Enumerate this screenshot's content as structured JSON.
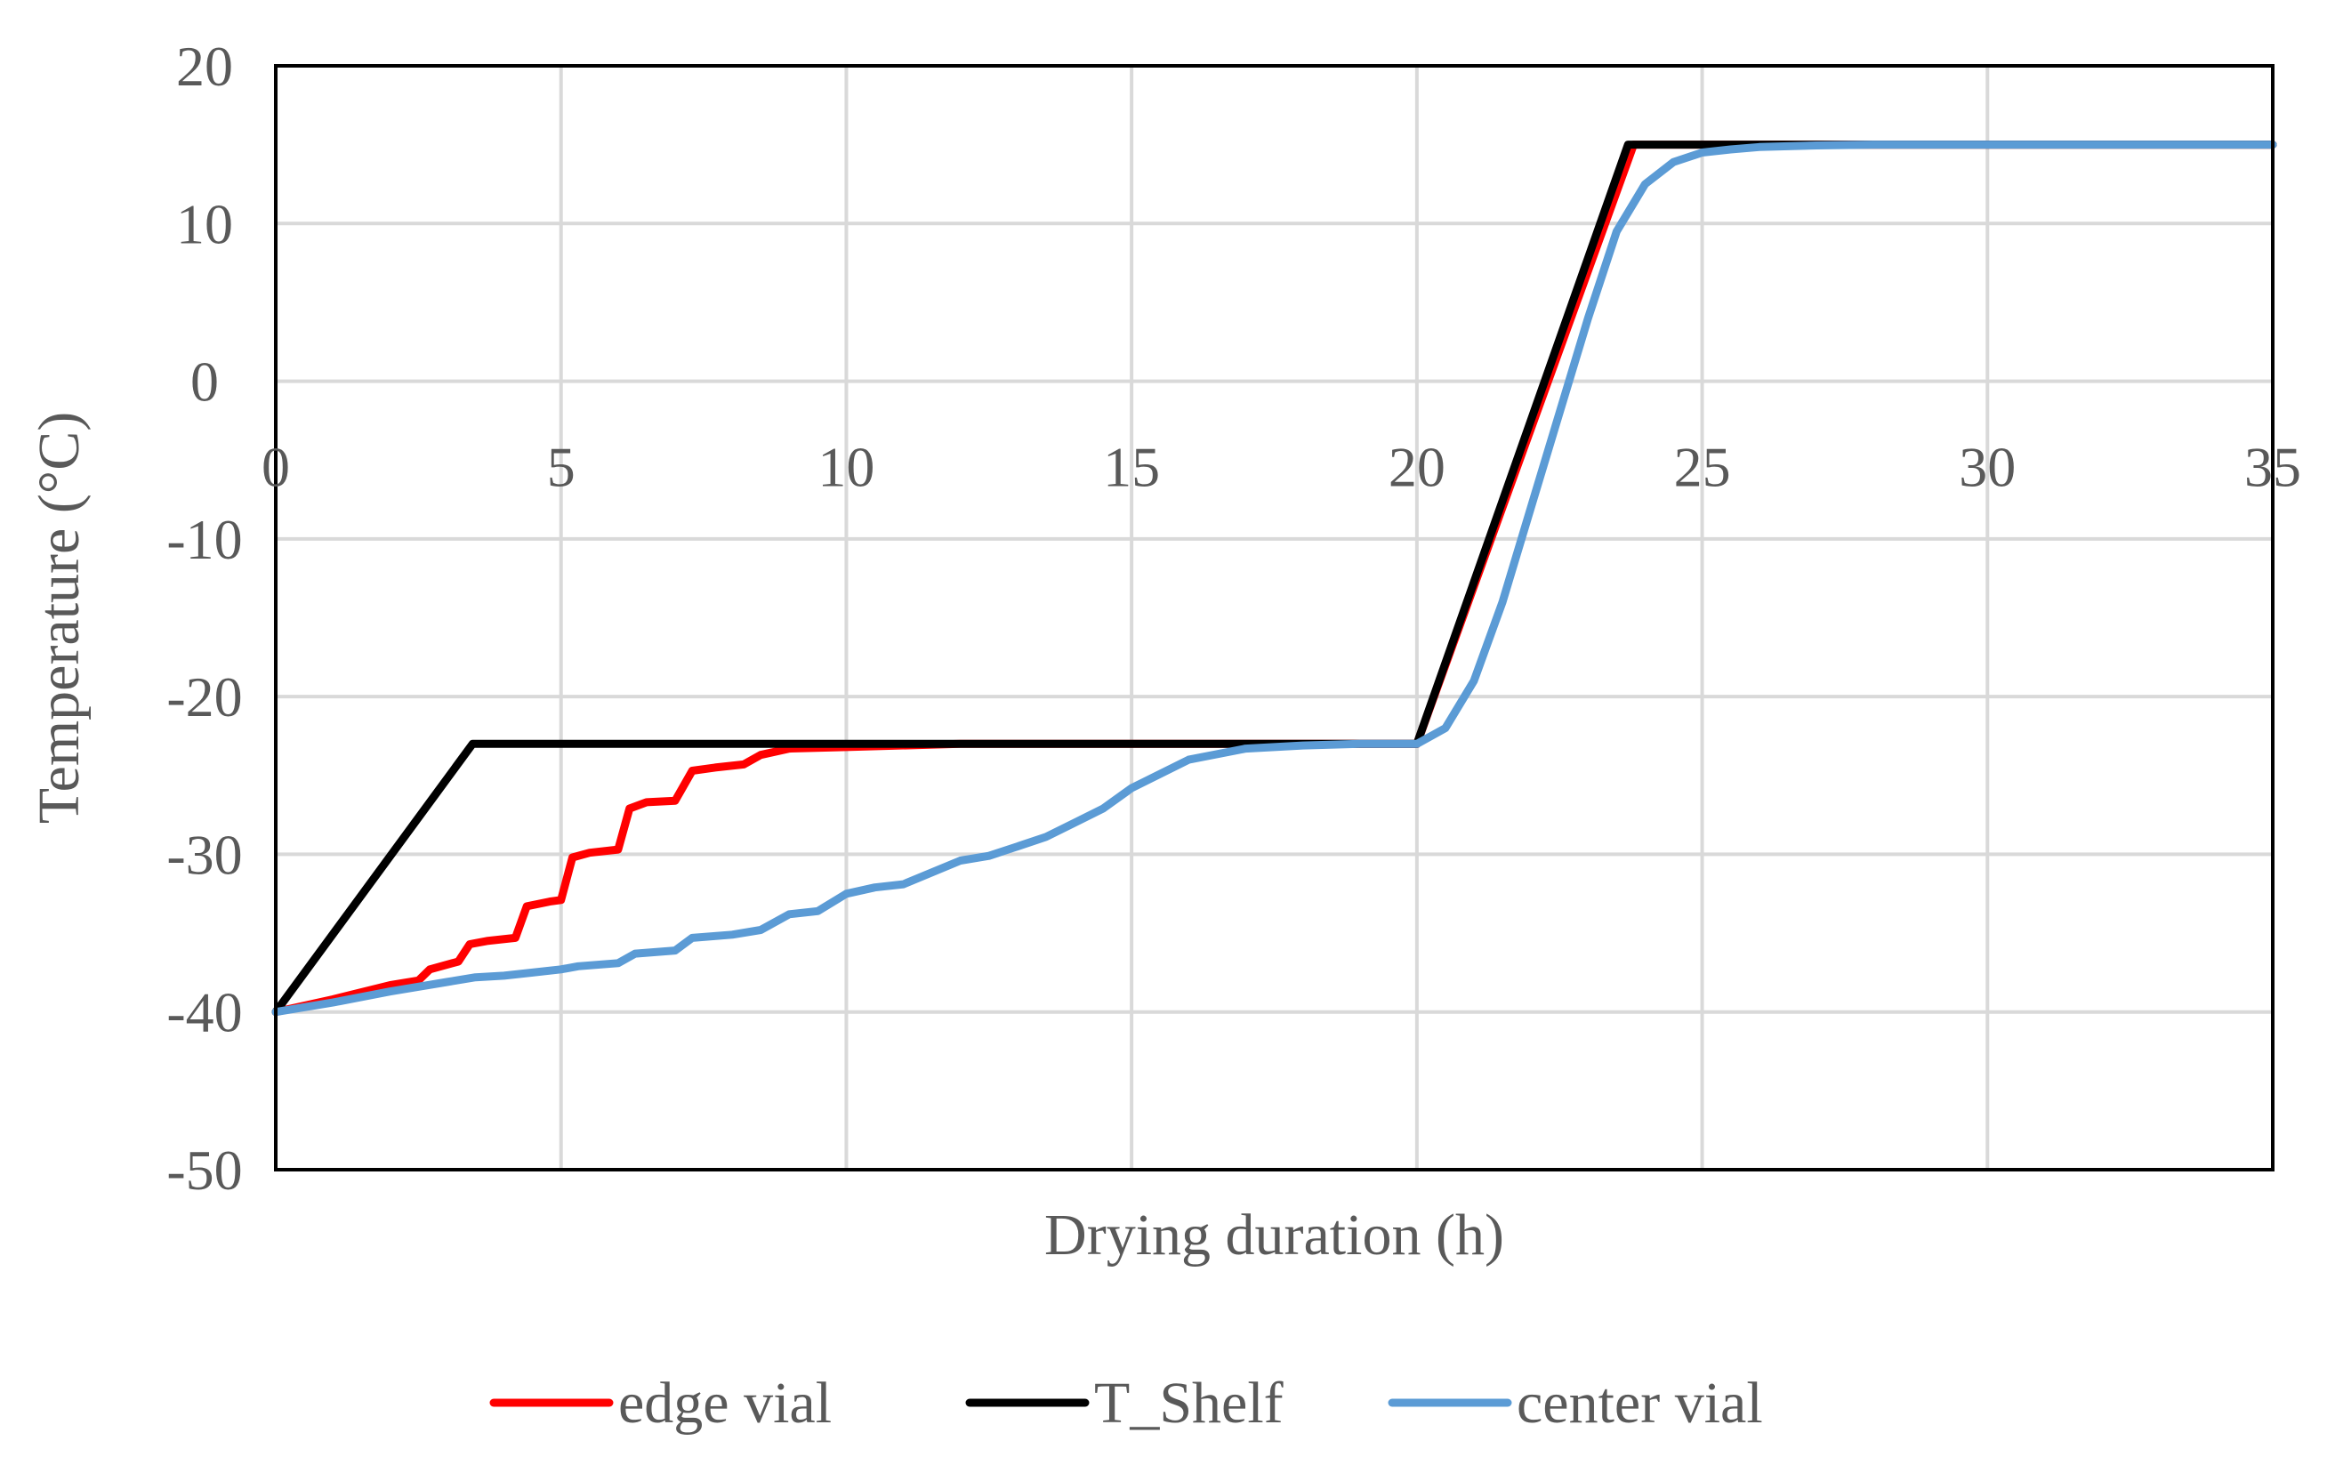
{
  "chart_data": {
    "type": "line",
    "title": "",
    "xlabel": "Drying duration (h)",
    "ylabel": "Temperature (°C)",
    "xlim": [
      0,
      35
    ],
    "ylim": [
      -50,
      20
    ],
    "xticks": [
      0,
      5,
      10,
      15,
      20,
      25,
      30,
      35
    ],
    "yticks": [
      20,
      10,
      0,
      -10,
      -20,
      -30,
      -40,
      -50
    ],
    "xtick_labels": [
      "0",
      "5",
      "10",
      "15",
      "20",
      "25",
      "30",
      "35"
    ],
    "ytick_labels": [
      "20",
      "10",
      "0",
      "-10",
      "-20",
      "-30",
      "-40",
      "-50"
    ],
    "grid": true,
    "legend_position": "bottom",
    "series": [
      {
        "name": "edge vial",
        "color": "#ff0000",
        "x": [
          0,
          1,
          2,
          2.5,
          2.7,
          3.2,
          3.4,
          3.7,
          4.2,
          4.4,
          4.8,
          5.0,
          5.2,
          5.5,
          6.0,
          6.2,
          6.5,
          7.0,
          7.3,
          7.7,
          8.2,
          8.5,
          9.0,
          10,
          12,
          20,
          23.8,
          35
        ],
        "y": [
          -40,
          -39.2,
          -38.3,
          -38,
          -37.3,
          -36.8,
          -35.7,
          -35.5,
          -35.3,
          -33.3,
          -33.0,
          -32.9,
          -30.2,
          -29.9,
          -29.7,
          -27.1,
          -26.7,
          -26.6,
          -24.7,
          -24.5,
          -24.3,
          -23.7,
          -23.3,
          -23.2,
          -23.0,
          -23.0,
          15,
          15
        ]
      },
      {
        "name": "T_Shelf",
        "color": "#000000",
        "x": [
          0,
          3.45,
          20,
          23.7,
          35
        ],
        "y": [
          -40,
          -23,
          -23,
          15,
          15
        ]
      },
      {
        "name": "center vial",
        "color": "#5b9bd5",
        "x": [
          0,
          1,
          2,
          3,
          3.5,
          4,
          4.5,
          5,
          5.3,
          6,
          6.3,
          7,
          7.3,
          8,
          8.5,
          9,
          9.5,
          10,
          10.5,
          11,
          12,
          12.5,
          13,
          13.5,
          14,
          14.5,
          15,
          16,
          17,
          18,
          19,
          20,
          20.5,
          21,
          21.5,
          22,
          22.5,
          23,
          23.5,
          24,
          24.5,
          25,
          25.5,
          26,
          27,
          28,
          35
        ],
        "y": [
          -40,
          -39.4,
          -38.7,
          -38.1,
          -37.8,
          -37.7,
          -37.5,
          -37.3,
          -37.1,
          -36.9,
          -36.3,
          -36.1,
          -35.3,
          -35.1,
          -34.8,
          -33.8,
          -33.6,
          -32.5,
          -32.1,
          -31.9,
          -30.4,
          -30.1,
          -29.5,
          -28.9,
          -28.0,
          -27.1,
          -25.8,
          -24.0,
          -23.3,
          -23.1,
          -23.0,
          -23.0,
          -22.0,
          -19.0,
          -14.0,
          -8.0,
          -2.0,
          4.0,
          9.5,
          12.5,
          13.9,
          14.5,
          14.7,
          14.85,
          14.95,
          15,
          15
        ]
      }
    ]
  }
}
